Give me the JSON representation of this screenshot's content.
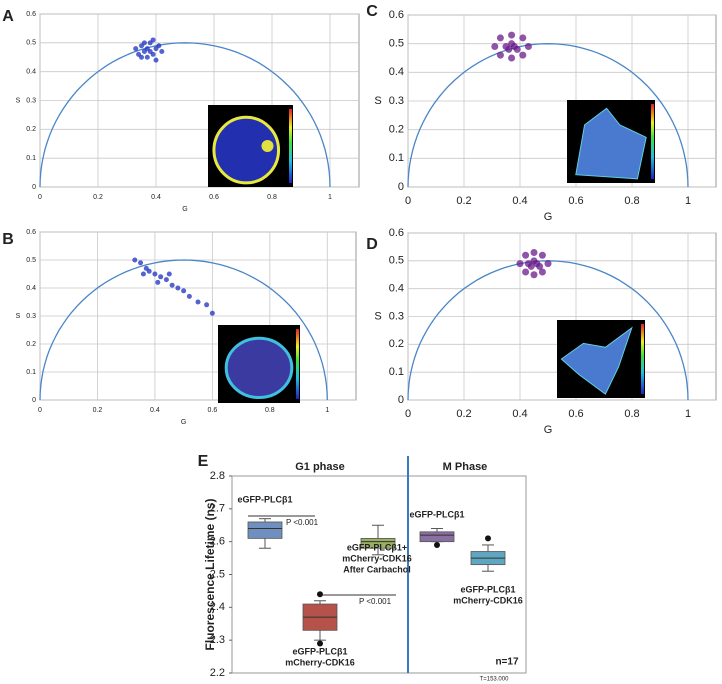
{
  "chart_data": [
    {
      "type": "scatter",
      "label": "A",
      "xlabel": "G",
      "ylabel": "S",
      "xlim": [
        0,
        1.1
      ],
      "ylim": [
        0,
        0.6
      ],
      "xticks": [
        0,
        0.2,
        0.4,
        0.6,
        0.8,
        1
      ],
      "yticks": [
        0,
        0.1,
        0.2,
        0.3,
        0.4,
        0.5,
        0.6
      ],
      "grid": true,
      "color": "#1b2fbf",
      "x": [
        0.33,
        0.35,
        0.36,
        0.37,
        0.38,
        0.39,
        0.4,
        0.41,
        0.34,
        0.37,
        0.39,
        0.36,
        0.42,
        0.38,
        0.35,
        0.4
      ],
      "values": [
        0.48,
        0.49,
        0.47,
        0.48,
        0.5,
        0.46,
        0.48,
        0.49,
        0.46,
        0.45,
        0.51,
        0.5,
        0.47,
        0.47,
        0.45,
        0.44
      ]
    },
    {
      "type": "scatter",
      "label": "B",
      "xlabel": "G",
      "ylabel": "S",
      "xlim": [
        0,
        1.1
      ],
      "ylim": [
        0,
        0.6
      ],
      "xticks": [
        0,
        0.2,
        0.4,
        0.6,
        0.8,
        1
      ],
      "yticks": [
        0,
        0.1,
        0.2,
        0.3,
        0.4,
        0.5,
        0.6
      ],
      "grid": true,
      "color": "#1b2fbf",
      "x": [
        0.33,
        0.35,
        0.37,
        0.38,
        0.4,
        0.42,
        0.44,
        0.46,
        0.48,
        0.5,
        0.52,
        0.55,
        0.36,
        0.41,
        0.45,
        0.58,
        0.6
      ],
      "values": [
        0.5,
        0.49,
        0.47,
        0.46,
        0.45,
        0.44,
        0.43,
        0.41,
        0.4,
        0.39,
        0.37,
        0.35,
        0.45,
        0.42,
        0.45,
        0.34,
        0.31
      ]
    },
    {
      "type": "scatter",
      "label": "C",
      "xlabel": "G",
      "ylabel": "S",
      "xlim": [
        0,
        1.1
      ],
      "ylim": [
        0,
        0.6
      ],
      "xticks": [
        0,
        0.2,
        0.4,
        0.6,
        0.8,
        1
      ],
      "yticks": [
        0,
        0.1,
        0.2,
        0.3,
        0.4,
        0.5,
        0.6
      ],
      "grid": true,
      "color": "#6a1a8a",
      "x": [
        0.31,
        0.33,
        0.37,
        0.41,
        0.43,
        0.41,
        0.37,
        0.33,
        0.35,
        0.37,
        0.39,
        0.36,
        0.38
      ],
      "values": [
        0.49,
        0.52,
        0.53,
        0.52,
        0.49,
        0.46,
        0.45,
        0.46,
        0.49,
        0.5,
        0.48,
        0.48,
        0.49
      ]
    },
    {
      "type": "scatter",
      "label": "D",
      "xlabel": "G",
      "ylabel": "S",
      "xlim": [
        0,
        1.1
      ],
      "ylim": [
        0,
        0.6
      ],
      "xticks": [
        0,
        0.2,
        0.4,
        0.6,
        0.8,
        1
      ],
      "yticks": [
        0,
        0.1,
        0.2,
        0.3,
        0.4,
        0.5,
        0.6
      ],
      "grid": true,
      "color": "#6a1a8a",
      "x": [
        0.4,
        0.42,
        0.45,
        0.48,
        0.5,
        0.48,
        0.45,
        0.42,
        0.43,
        0.45,
        0.47,
        0.44,
        0.46
      ],
      "values": [
        0.49,
        0.52,
        0.53,
        0.52,
        0.49,
        0.46,
        0.45,
        0.46,
        0.49,
        0.5,
        0.48,
        0.48,
        0.49
      ]
    },
    {
      "type": "box",
      "label": "E",
      "ylabel": "Fluorescence Lifetime (ns)",
      "ylim": [
        2.2,
        2.8
      ],
      "yticks": [
        2.2,
        2.3,
        2.4,
        2.5,
        2.6,
        2.7,
        2.8
      ],
      "groups": [
        "G1 phase",
        "M Phase"
      ],
      "boxes": [
        {
          "label": [
            "eGFP-PLCβ1"
          ],
          "color": "#6f8fbf",
          "whisker_low": 2.58,
          "q1": 2.61,
          "median": 2.64,
          "q3": 2.66,
          "whisker_high": 2.67,
          "outliers": []
        },
        {
          "label": [
            "eGFP-PLCβ1",
            "mCherry-CDK16"
          ],
          "color": "#b5524a",
          "whisker_low": 2.3,
          "q1": 2.33,
          "median": 2.37,
          "q3": 2.41,
          "whisker_high": 2.42,
          "outliers": [
            2.29,
            2.44
          ]
        },
        {
          "label": [
            "eGFP-PLCβ1+",
            "mCherry-CDK16",
            "After Carbachol"
          ],
          "color": "#9aaf63",
          "whisker_low": 2.56,
          "q1": 2.58,
          "median": 2.6,
          "q3": 2.61,
          "whisker_high": 2.65,
          "outliers": []
        },
        {
          "label": [
            "eGFP-PLCβ1"
          ],
          "color": "#8a6fa3",
          "whisker_low": 2.6,
          "q1": 2.6,
          "median": 2.62,
          "q3": 2.63,
          "whisker_high": 2.64,
          "outliers": [
            2.59
          ]
        },
        {
          "label": [
            "eGFP-PLCβ1",
            "mCherry-CDK16"
          ],
          "color": "#5fa6c0",
          "whisker_low": 2.51,
          "q1": 2.53,
          "median": 2.55,
          "q3": 2.57,
          "whisker_high": 2.59,
          "outliers": [
            2.61
          ]
        }
      ],
      "annotations": [
        "P <0.001",
        "P <0.001",
        "n=17",
        "T=153.000"
      ]
    }
  ]
}
